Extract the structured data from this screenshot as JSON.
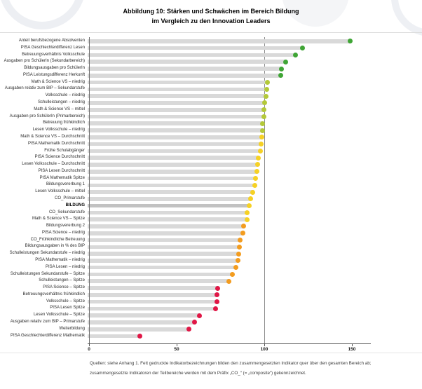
{
  "title": {
    "line1": "Abbildung 10:  Stärken und Schwächen im Bereich Bildung",
    "line2": "im Vergleich zu den Innovation Leaders"
  },
  "footer": {
    "line1": "Quellen: siehe Anhang 1. Fett gedruckte Indikatorbezeichnungen bilden den zusammengesetzten Indikator quer über den gesamten Bereich ab;",
    "line2": "zusammengesetzte Indikatoren der Teilbereiche werden mit dem Präfix „CO_“ (= „composite“) gekennzeichnet."
  },
  "chart_data": {
    "type": "bar",
    "orientation": "horizontal",
    "title": "Stärken und Schwächen im Bereich Bildung im Vergleich zu den Innovation Leaders",
    "xlabel": "",
    "ylabel": "",
    "xlim": [
      0,
      160
    ],
    "x_ticks": [
      0,
      50,
      100,
      150
    ],
    "x_tick_labels": [
      "0",
      "50",
      "100",
      "150"
    ],
    "reference_line": 100,
    "grid": false,
    "legend_position": "none",
    "bar_color": "#d9d9d9",
    "highlight_bar_color": "#c2c2c2",
    "category_colors": {
      "green": "#3fa535",
      "lightgreen": "#b4c939",
      "yellow": "#f6d125",
      "orange": "#f39c1f",
      "red": "#e01746"
    },
    "rows": [
      {
        "label": "Anteil berufsbezogene Absolventen",
        "value": 150,
        "group": "green",
        "bold": false
      },
      {
        "label": "PISA Geschlechterdifferenz Lesen",
        "value": 123,
        "group": "green",
        "bold": false
      },
      {
        "label": "Betreuungsverhältnis Volksschule",
        "value": 119,
        "group": "green",
        "bold": false
      },
      {
        "label": "Ausgaben pro SchülerIn (Sekundarbereich)",
        "value": 113.5,
        "group": "green",
        "bold": false
      },
      {
        "label": "Bildungsausgaben pro SchülerIn",
        "value": 111,
        "group": "green",
        "bold": false
      },
      {
        "label": "PISA Leistungsdifferenz Herkunft",
        "value": 110.5,
        "group": "green",
        "bold": false
      },
      {
        "label": "Math & Science VS – niedrig",
        "value": 103,
        "group": "lightgreen",
        "bold": false
      },
      {
        "label": "Ausgaben relativ zum BIP – Sekundarstufe",
        "value": 102.5,
        "group": "lightgreen",
        "bold": false
      },
      {
        "label": "Volksschule – niedrig",
        "value": 102,
        "group": "lightgreen",
        "bold": false
      },
      {
        "label": "Schulleistungen – niedrig",
        "value": 101.5,
        "group": "lightgreen",
        "bold": false
      },
      {
        "label": "Math & Science VS – mittel",
        "value": 101,
        "group": "lightgreen",
        "bold": false
      },
      {
        "label": "Ausgaben pro SchülerIn (Primarbereich)",
        "value": 100.8,
        "group": "lightgreen",
        "bold": false
      },
      {
        "label": "Betreuung frühkindlich",
        "value": 100.3,
        "group": "lightgreen",
        "bold": false
      },
      {
        "label": "Lesen Volksschule – niedrig",
        "value": 100,
        "group": "lightgreen",
        "bold": false
      },
      {
        "label": "Math & Science VS – Durchschnitt",
        "value": 99.6,
        "group": "yellow",
        "bold": false
      },
      {
        "label": "PISA Mathematik Durchschnitt",
        "value": 99.2,
        "group": "yellow",
        "bold": false
      },
      {
        "label": "Frühe Schulabgänger",
        "value": 98.8,
        "group": "yellow",
        "bold": false
      },
      {
        "label": "PISA Science Durchschnitt",
        "value": 97.6,
        "group": "yellow",
        "bold": false
      },
      {
        "label": "Lesen Volksschule – Durchschnitt",
        "value": 97.2,
        "group": "yellow",
        "bold": false
      },
      {
        "label": "PISA Lesen Durchschnitt",
        "value": 96.8,
        "group": "yellow",
        "bold": false
      },
      {
        "label": "PISA Mathematik Spitze",
        "value": 96,
        "group": "yellow",
        "bold": false
      },
      {
        "label": "Bildungsvererbung 1",
        "value": 95.6,
        "group": "yellow",
        "bold": false
      },
      {
        "label": "Lesen Volksschule – mittel",
        "value": 94.6,
        "group": "yellow",
        "bold": false
      },
      {
        "label": "CO_Primarstufe",
        "value": 93.2,
        "group": "yellow",
        "bold": false
      },
      {
        "label": "BILDUNG",
        "value": 92.4,
        "group": "yellow",
        "bold": true
      },
      {
        "label": "CO_Sekundarstufe",
        "value": 91.5,
        "group": "yellow",
        "bold": false
      },
      {
        "label": "Math & Science VS – Spitze",
        "value": 91.3,
        "group": "yellow",
        "bold": false
      },
      {
        "label": "Bildungsvererbung 2",
        "value": 89.2,
        "group": "orange",
        "bold": false
      },
      {
        "label": "PISA Science – niedrig",
        "value": 88.8,
        "group": "orange",
        "bold": false
      },
      {
        "label": "CO_Frühkindliche Betreuung",
        "value": 87.2,
        "group": "orange",
        "bold": false
      },
      {
        "label": "Bildungsausgaben in % des BIP",
        "value": 86.8,
        "group": "orange",
        "bold": false
      },
      {
        "label": "Schulleistungen Sekundarstufe – niedrig",
        "value": 86.5,
        "group": "orange",
        "bold": false
      },
      {
        "label": "PISA Mathematik – niedrig",
        "value": 86,
        "group": "orange",
        "bold": false
      },
      {
        "label": "PISA Lesen – niedrig",
        "value": 85,
        "group": "orange",
        "bold": false
      },
      {
        "label": "Schulleistungen Sekundarstufe – Spitze",
        "value": 83,
        "group": "orange",
        "bold": false
      },
      {
        "label": "Schulleistungen – Spitze",
        "value": 81,
        "group": "orange",
        "bold": false
      },
      {
        "label": "PISA Science – Spitze",
        "value": 74.5,
        "group": "red",
        "bold": false
      },
      {
        "label": "Betreuungsverhältnis frühkindlich",
        "value": 74,
        "group": "red",
        "bold": false
      },
      {
        "label": "Volksschule – Spitze",
        "value": 74,
        "group": "red",
        "bold": false
      },
      {
        "label": "PISA Lesen Spitze",
        "value": 73.5,
        "group": "red",
        "bold": false
      },
      {
        "label": "Lesen Volksschule – Spitze",
        "value": 64,
        "group": "red",
        "bold": false
      },
      {
        "label": "Ausgaben relativ zum BIP – Primarstufe",
        "value": 61.5,
        "group": "red",
        "bold": false
      },
      {
        "label": "Weiterbildung",
        "value": 58,
        "group": "red",
        "bold": false
      },
      {
        "label": "PISA Geschlechterdifferenz Mathematik",
        "value": 30,
        "group": "red",
        "bold": false
      }
    ]
  }
}
